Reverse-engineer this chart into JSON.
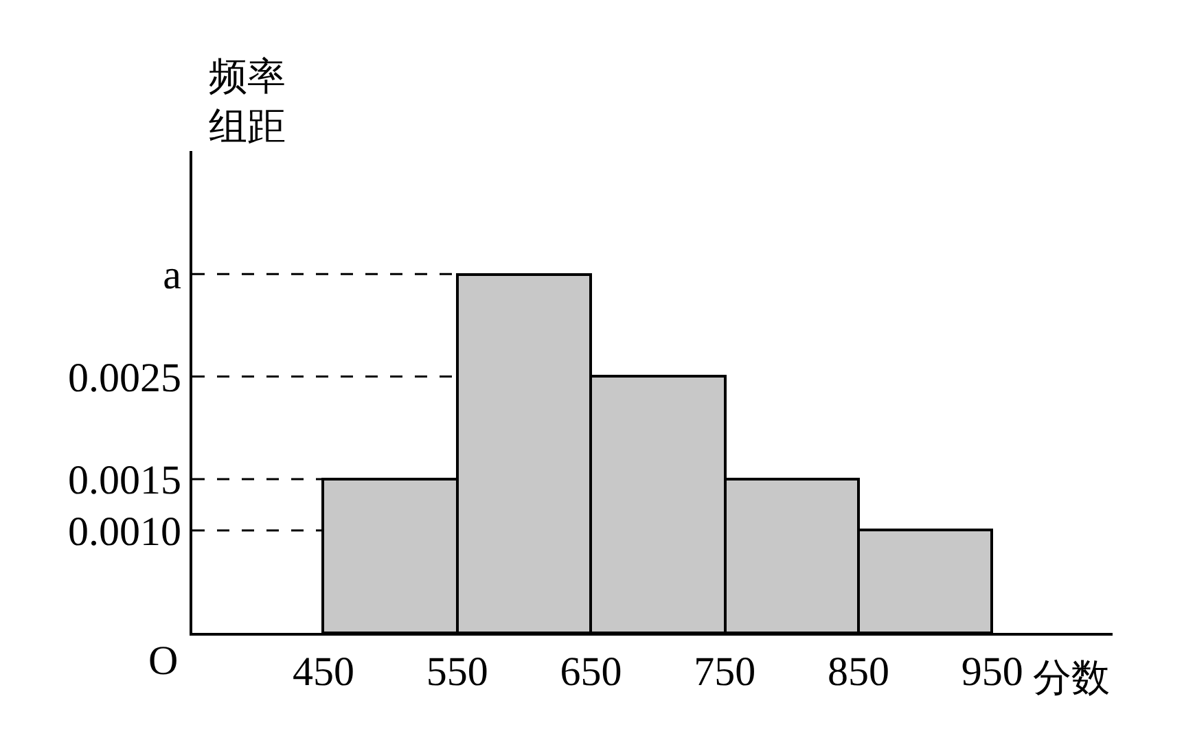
{
  "chart_data": {
    "type": "histogram",
    "bins": [
      450,
      550,
      650,
      750,
      850,
      950
    ],
    "values": [
      0.0015,
      0.0035,
      0.0025,
      0.0015,
      0.001
    ],
    "color": "#c8c8c8",
    "xlabel": "分数",
    "ylabel": "频率组距",
    "xlim": [
      352,
      1040
    ],
    "ylim": [
      0,
      0.0047
    ],
    "xticks": [
      450,
      550,
      650,
      750,
      850,
      950
    ],
    "yticks": [
      {
        "value": 0.001,
        "label": "0.0010"
      },
      {
        "value": 0.0015,
        "label": "0.0015"
      },
      {
        "value": 0.0025,
        "label": "0.0025"
      },
      {
        "value": 0.0035,
        "label": "a"
      }
    ],
    "ref_lines": [
      {
        "axis": "y",
        "value": 0.0035,
        "line_style": "dashed",
        "color": "#000000"
      },
      {
        "axis": "y",
        "value": 0.0025,
        "line_style": "dashed",
        "color": "#000000"
      },
      {
        "axis": "y",
        "value": 0.0015,
        "line_style": "dashed",
        "color": "#000000"
      },
      {
        "axis": "y",
        "value": 0.001,
        "line_style": "dashed",
        "color": "#000000"
      }
    ],
    "annotations": [
      "O"
    ],
    "grid": false
  }
}
